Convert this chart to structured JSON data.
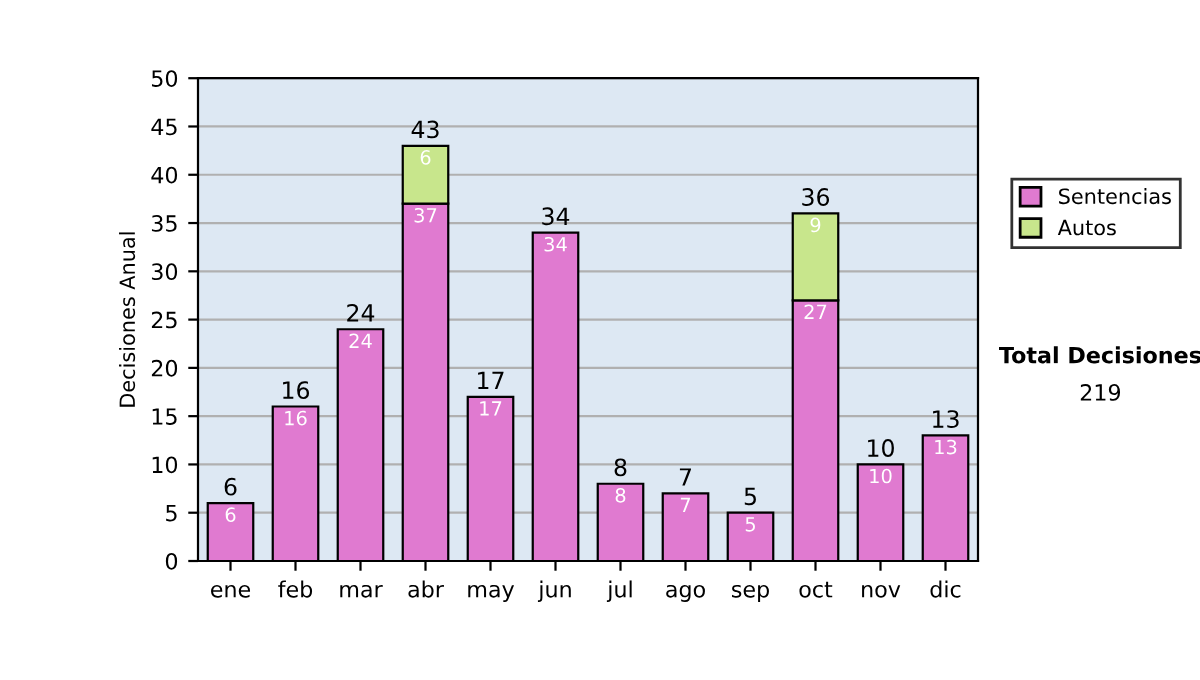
{
  "chart_data": {
    "type": "bar",
    "stacked": true,
    "ylabel": "Decisiones Anual",
    "categories": [
      "ene",
      "feb",
      "mar",
      "abr",
      "may",
      "jun",
      "jul",
      "ago",
      "sep",
      "oct",
      "nov",
      "dic"
    ],
    "series": [
      {
        "name": "Sentencias",
        "color": "#e07ad0",
        "values": [
          6,
          16,
          24,
          37,
          17,
          34,
          8,
          7,
          5,
          27,
          10,
          13
        ],
        "value_labels": [
          "6",
          "16",
          "24",
          "37",
          "17",
          "34",
          "8",
          "7",
          "5",
          "27",
          "10",
          "13"
        ]
      },
      {
        "name": "Autos",
        "color": "#c8e68c",
        "values": [
          null,
          null,
          null,
          6,
          null,
          null,
          null,
          null,
          null,
          9,
          null,
          null
        ],
        "value_labels": [
          null,
          null,
          null,
          "6",
          null,
          null,
          null,
          null,
          null,
          "9",
          null,
          null
        ]
      }
    ],
    "totals": [
      "6",
      "16",
      "24",
      "43",
      "17",
      "34",
      "8",
      "7",
      "5",
      "36",
      "10",
      "13"
    ],
    "ylim": [
      0,
      50
    ],
    "yticks": [
      0,
      5,
      10,
      15,
      20,
      25,
      30,
      35,
      40,
      45,
      50
    ],
    "grid": "y",
    "legend": "right",
    "annotations": [
      "Total Decisiones",
      "219"
    ]
  }
}
